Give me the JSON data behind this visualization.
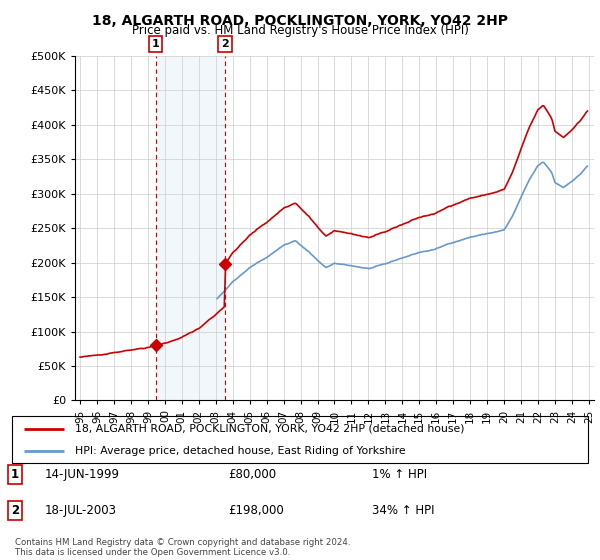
{
  "title": "18, ALGARTH ROAD, POCKLINGTON, YORK, YO42 2HP",
  "subtitle": "Price paid vs. HM Land Registry's House Price Index (HPI)",
  "purchase1_date": "14-JUN-1999",
  "purchase1_price": 80000,
  "purchase1_hpi": "1% ↑ HPI",
  "purchase1_year": 1999.45,
  "purchase2_date": "18-JUL-2003",
  "purchase2_price": 198000,
  "purchase2_hpi": "34% ↑ HPI",
  "purchase2_year": 2003.54,
  "legend1": "18, ALGARTH ROAD, POCKLINGTON, YORK, YO42 2HP (detached house)",
  "legend2": "HPI: Average price, detached house, East Riding of Yorkshire",
  "footer": "Contains HM Land Registry data © Crown copyright and database right 2024.\nThis data is licensed under the Open Government Licence v3.0.",
  "line_color_red": "#cc0000",
  "line_color_blue": "#6699cc",
  "vline_color": "#cc0000",
  "background_color": "#ffffff",
  "ylim": [
    0,
    500000
  ],
  "yticks": [
    0,
    50000,
    100000,
    150000,
    200000,
    250000,
    300000,
    350000,
    400000,
    450000,
    500000
  ],
  "xlim_start": 1994.7,
  "xlim_end": 2025.3
}
